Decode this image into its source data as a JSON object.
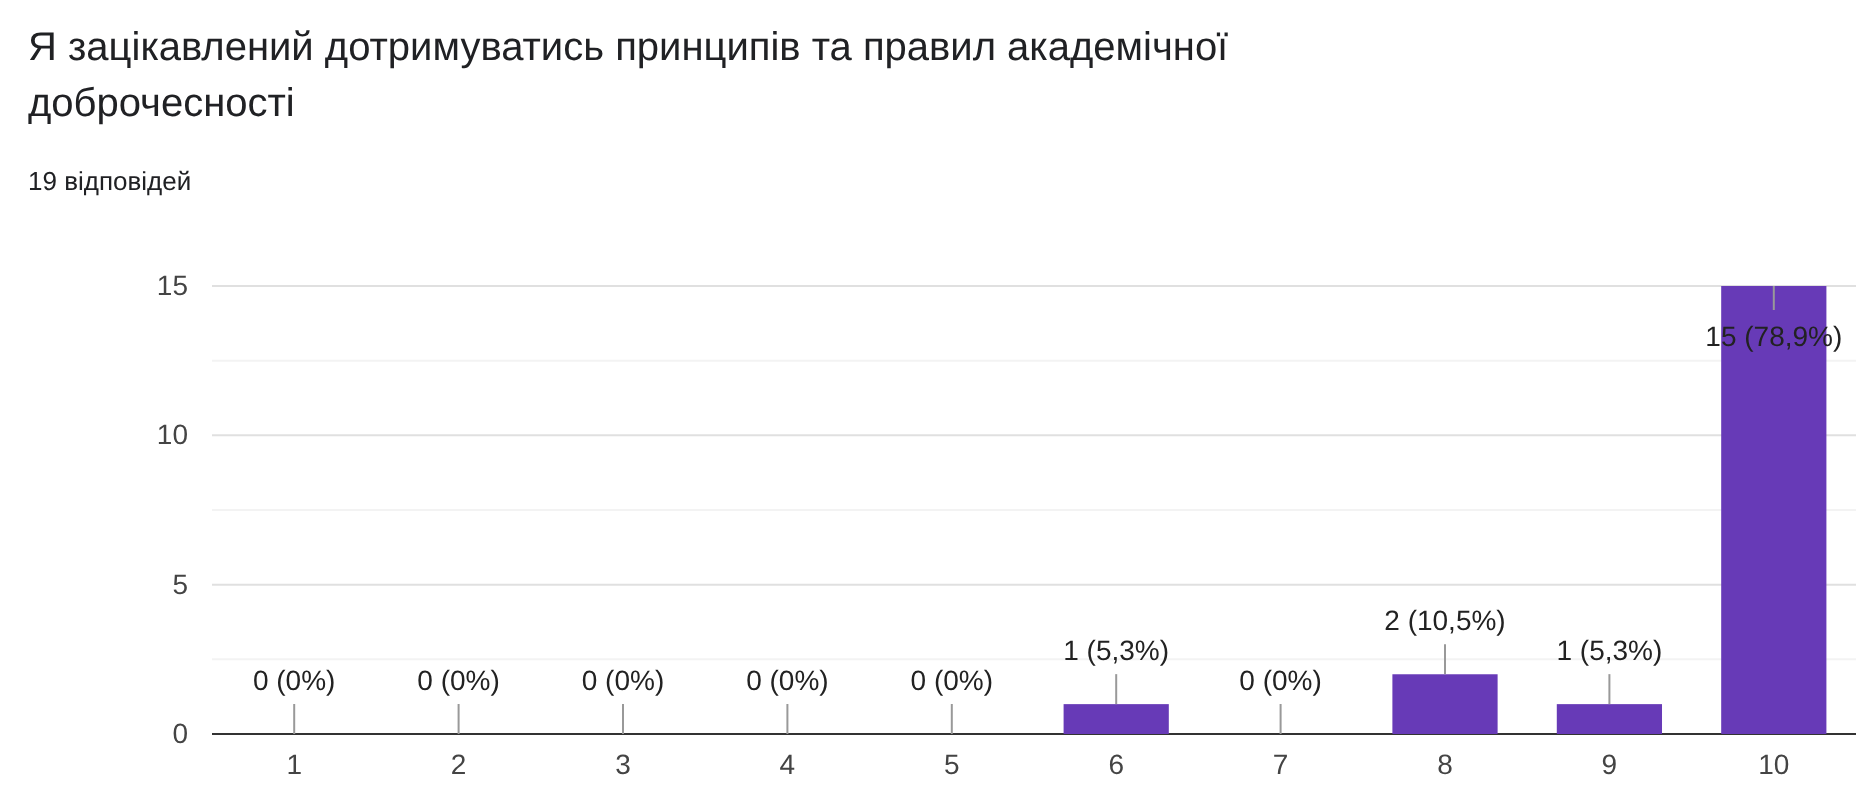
{
  "chart_data": {
    "type": "bar",
    "title": "Я зацікавлений дотримуватись принципів та правил академічної доброчесності",
    "subtitle": "19 відповідей",
    "categories": [
      "1",
      "2",
      "3",
      "4",
      "5",
      "6",
      "7",
      "8",
      "9",
      "10"
    ],
    "values": [
      0,
      0,
      0,
      0,
      0,
      1,
      0,
      2,
      1,
      15
    ],
    "value_labels": [
      "0 (0%)",
      "0 (0%)",
      "0 (0%)",
      "0 (0%)",
      "0 (0%)",
      "1 (5,3%)",
      "0 (0%)",
      "2 (10,5%)",
      "1 (5,3%)",
      "15 (78,9%)"
    ],
    "color": "#673ab7",
    "ylim": [
      0,
      15
    ],
    "yticks": [
      0,
      {
        "value": 2.5,
        "label": null
      },
      5,
      {
        "value": 7.5,
        "label": null
      },
      10,
      {
        "value": 12.5,
        "label": null
      },
      15
    ],
    "grid": "y"
  }
}
